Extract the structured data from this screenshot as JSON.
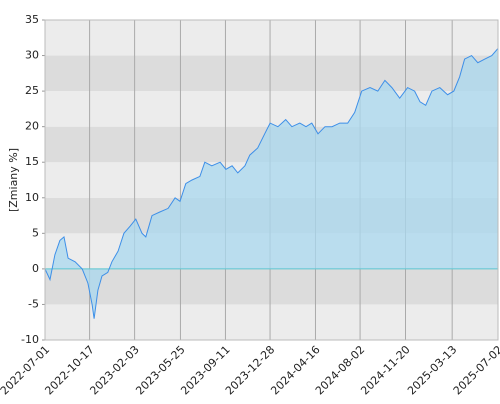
{
  "chart_data": {
    "type": "area",
    "y_label": "[Zmiany %]",
    "x": [
      "2022-07-01",
      "2022-07-13",
      "2022-07-25",
      "2022-08-06",
      "2022-08-16",
      "2022-08-26",
      "2022-09-12",
      "2022-09-29",
      "2022-10-13",
      "2022-10-23",
      "2022-10-28",
      "2022-11-06",
      "2022-11-16",
      "2022-11-30",
      "2022-12-10",
      "2022-12-25",
      "2023-01-08",
      "2023-01-23",
      "2023-02-06",
      "2023-02-21",
      "2023-03-02",
      "2023-03-17",
      "2023-04-05",
      "2023-04-25",
      "2023-05-12",
      "2023-05-24",
      "2023-06-07",
      "2023-06-22",
      "2023-07-11",
      "2023-07-23",
      "2023-08-09",
      "2023-08-29",
      "2023-09-12",
      "2023-09-27",
      "2023-10-11",
      "2023-10-28",
      "2023-11-09",
      "2023-11-28",
      "2023-12-15",
      "2023-12-28",
      "2024-01-16",
      "2024-02-04",
      "2024-02-19",
      "2024-03-09",
      "2024-03-24",
      "2024-04-07",
      "2024-04-22",
      "2024-05-09",
      "2024-05-26",
      "2024-06-14",
      "2024-07-03",
      "2024-07-20",
      "2024-08-06",
      "2024-08-26",
      "2024-09-14",
      "2024-10-01",
      "2024-10-18",
      "2024-11-06",
      "2024-11-25",
      "2024-12-12",
      "2024-12-25",
      "2025-01-08",
      "2025-01-23",
      "2025-02-11",
      "2025-03-02",
      "2025-03-17",
      "2025-03-31",
      "2025-04-12",
      "2025-04-29",
      "2025-05-14",
      "2025-05-31",
      "2025-06-17",
      "2025-07-02"
    ],
    "series": [
      {
        "color": "#3d8fe8",
        "fill": "#a9d8ef",
        "values": [
          0,
          -1.5,
          2,
          4,
          4.5,
          1.5,
          1,
          0,
          -2,
          -5,
          -7,
          -3,
          -1,
          -0.5,
          1,
          2.5,
          5,
          6,
          7,
          5,
          4.5,
          7.5,
          8,
          8.5,
          10,
          9.5,
          12,
          12.5,
          13,
          15,
          14.5,
          15,
          14,
          14.5,
          13.5,
          14.5,
          16,
          17,
          19,
          20.5,
          20,
          21,
          20,
          20.5,
          20,
          20.5,
          19,
          20,
          20,
          20.5,
          20.5,
          22,
          25,
          25.5,
          25,
          26.5,
          25.5,
          24,
          25.5,
          25,
          23.5,
          23,
          25,
          25.5,
          24.5,
          25,
          27,
          29.5,
          30,
          29,
          29.5,
          30,
          31
        ]
      }
    ],
    "xlim": [
      "2022-07-01",
      "2025-07-02"
    ],
    "xticks": [
      "2022-07-01",
      "2022-10-17",
      "2023-02-03",
      "2023-05-25",
      "2023-09-11",
      "2023-12-28",
      "2024-04-16",
      "2024-08-02",
      "2024-11-20",
      "2025-03-13",
      "2025-07-02"
    ],
    "ylim": [
      -10,
      35
    ],
    "yticks": [
      -10,
      -5,
      0,
      5,
      10,
      15,
      20,
      25,
      30,
      35
    ],
    "band_colors": [
      "#ececec",
      "#dcdcdc"
    ],
    "zero_line_color": "#5cc6d0",
    "grid": true
  }
}
